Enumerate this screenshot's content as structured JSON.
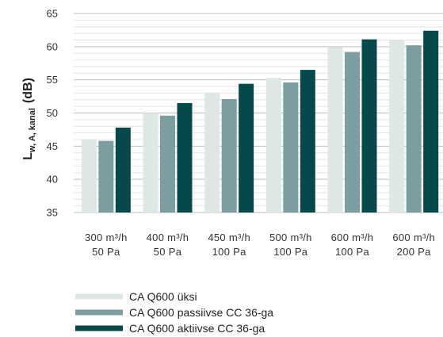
{
  "chart_data": {
    "type": "bar",
    "ylabel": {
      "main": "L",
      "sub": "w, A, kanal",
      "unit": "(dB)"
    },
    "ylim": [
      35,
      65
    ],
    "yticks": [
      35,
      40,
      45,
      50,
      55,
      60,
      65
    ],
    "grid": true,
    "categories": [
      [
        "300 m³/h",
        "50 Pa"
      ],
      [
        "400 m³/h",
        "50 Pa"
      ],
      [
        "450 m³/h",
        "100 Pa"
      ],
      [
        "500 m³/h",
        "100 Pa"
      ],
      [
        "600 m³/h",
        "100 Pa"
      ],
      [
        "600 m³/h",
        "200 Pa"
      ]
    ],
    "series": [
      {
        "name": "CA Q600 üksi",
        "color": "#dce7e6",
        "values": [
          46.0,
          50.0,
          53.0,
          55.3,
          59.9,
          61.0
        ]
      },
      {
        "name": "CA Q600 passiivse CC 36-ga",
        "color": "#7c9ea0",
        "values": [
          45.8,
          49.6,
          52.1,
          54.6,
          59.2,
          60.2
        ]
      },
      {
        "name": "CA Q600 aktiivse CC 36-ga",
        "color": "#06494a",
        "values": [
          47.8,
          51.5,
          54.4,
          56.5,
          61.1,
          62.4
        ]
      }
    ],
    "legend_position": "bottom-left"
  }
}
